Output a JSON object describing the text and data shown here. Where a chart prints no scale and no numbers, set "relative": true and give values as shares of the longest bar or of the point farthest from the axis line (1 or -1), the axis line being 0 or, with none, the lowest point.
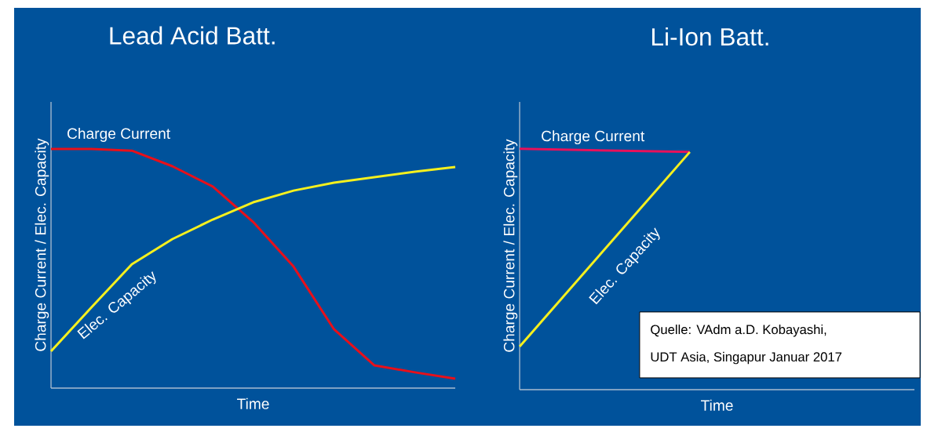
{
  "chart_data": [
    {
      "type": "line",
      "title": "Lead Acid Batt.",
      "xlabel": "Time",
      "ylabel": "Charge Current / Elec. Capacity",
      "relative": true,
      "categories": [
        null,
        null,
        null,
        null,
        null,
        null,
        null,
        null,
        null,
        null,
        null
      ],
      "series": [
        {
          "name": "Charge Current",
          "color": "#e8101a",
          "values": [
            1,
            1,
            0.993,
            0.928,
            0.843,
            0.695,
            0.508,
            0.246,
            0.095,
            0.066,
            0.039
          ]
        },
        {
          "name": "Elec. Capacity",
          "color": "#f5f01e",
          "values": [
            0.154,
            0.338,
            0.518,
            0.623,
            0.705,
            0.777,
            0.826,
            0.859,
            0.882,
            0.905,
            0.925
          ]
        }
      ]
    },
    {
      "type": "line",
      "title": "Li-Ion Batt.",
      "xlabel": "Time",
      "ylabel": "Charge Current / Elec. Capacity",
      "relative": true,
      "categories": [
        null,
        null,
        null
      ],
      "series": [
        {
          "name": "Charge Current",
          "color": "#e8115b",
          "values": [
            1,
            0.987,
            null
          ]
        },
        {
          "name": "Elec. Capacity",
          "color": "#f5f01e",
          "values": [
            0.179,
            0.987,
            null
          ]
        }
      ],
      "annotations": [
        "Quelle: VAdm a.D. Kobayashi,",
        "UDT Asia, Singapur Januar 2017"
      ]
    }
  ]
}
